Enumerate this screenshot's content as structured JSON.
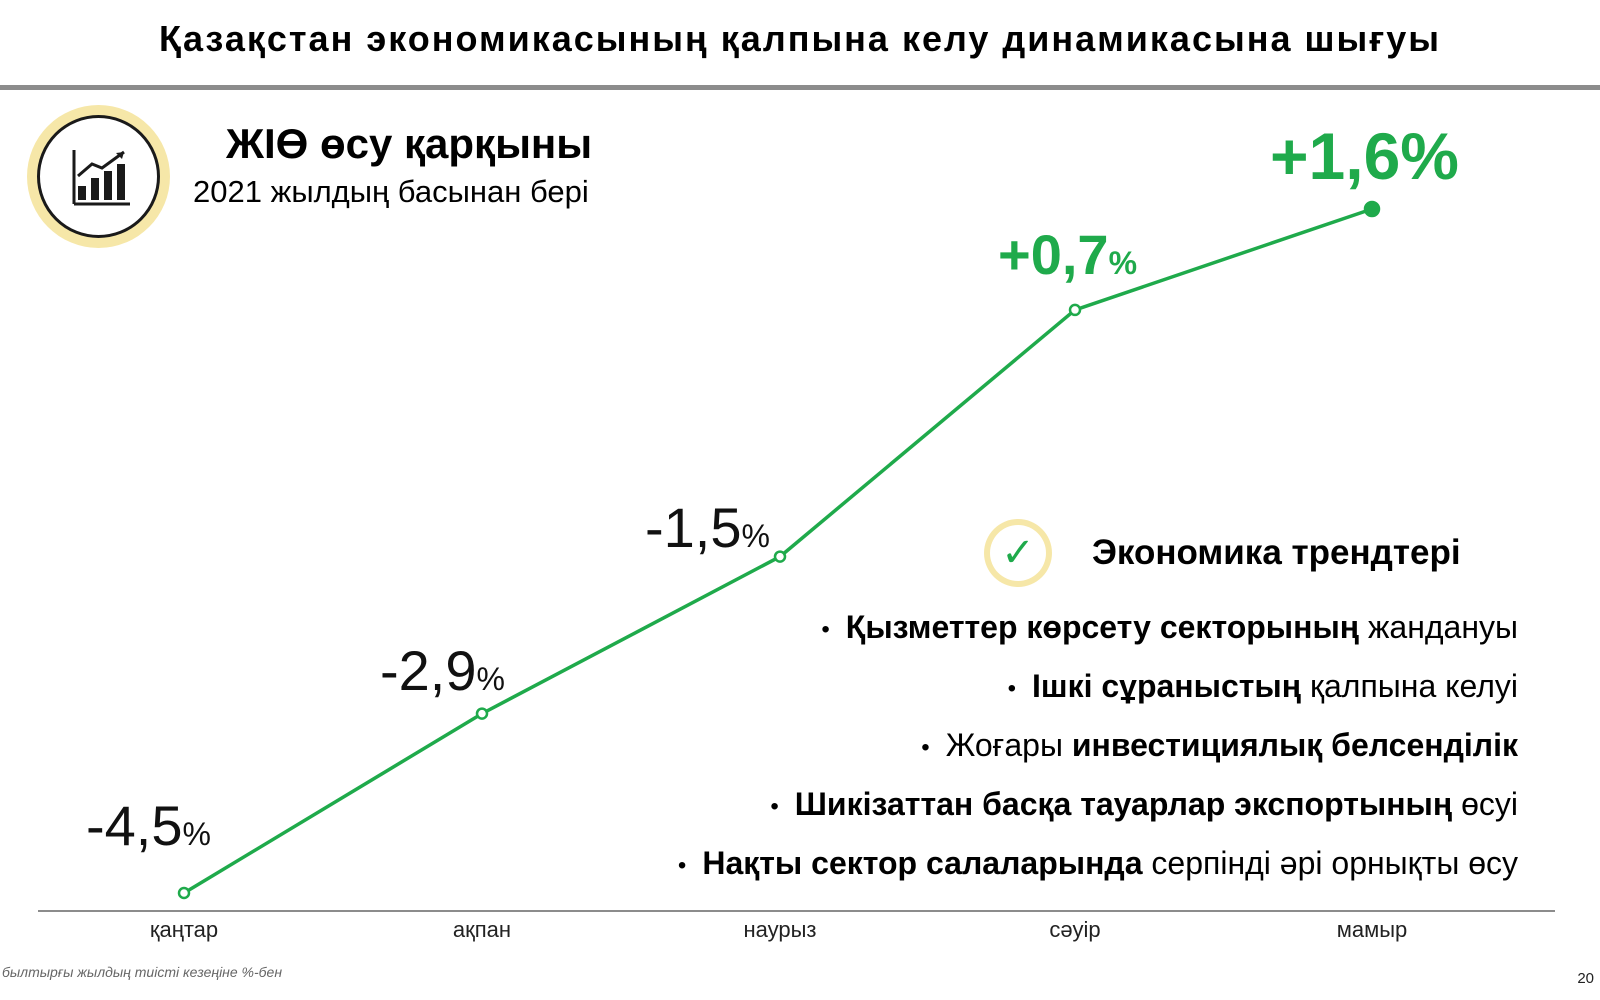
{
  "header": {
    "title": "Қазақстан экономикасының қалпына келу динамикасына шығуы"
  },
  "gdp_block": {
    "icon": "bar-chart-growth-icon",
    "title": "ЖІӨ өсу қарқыны",
    "subtitle": "2021 жылдың басынан бері"
  },
  "chart_data": {
    "type": "line",
    "categories": [
      "қаңтар",
      "ақпан",
      "наурыз",
      "сәуір",
      "мамыр"
    ],
    "values": [
      -4.5,
      -2.9,
      -1.5,
      0.7,
      1.6
    ],
    "value_labels": [
      {
        "num": "-4,5",
        "pct": "%",
        "positive": false
      },
      {
        "num": "-2,9",
        "pct": "%",
        "positive": false
      },
      {
        "num": "-1,5",
        "pct": "%",
        "positive": false
      },
      {
        "num": "+0,7",
        "pct": "%",
        "positive": true
      },
      {
        "num": "+1,6%",
        "pct": "",
        "positive": true
      }
    ],
    "line_color": "#1faa4b",
    "grid": false
  },
  "trends": {
    "icon": "checkmark-icon",
    "title": "Экономика трендтері",
    "items": [
      {
        "bold": "Қызметтер көрсету секторының",
        "rest": " жандануы"
      },
      {
        "bold": "Ішкі сұраныстың",
        "rest": " қалпына келуі"
      },
      {
        "pre": "Жоғары ",
        "bold": "инвестициялық белсенділік"
      },
      {
        "bold": "Шикізаттан басқа тауарлар экспортының",
        "rest": " өсуі"
      },
      {
        "bold": "Нақты сектор салаларында",
        "rest": " серпінді әрі орнықты өсу"
      }
    ]
  },
  "footnote": "былтырғы жылдың тиісті кезеңіне %-бен",
  "page_number": "20",
  "colors": {
    "accent_green": "#1faa4b",
    "ring_yellow": "#f6e7a8",
    "rule_gray": "#8c8c8c"
  }
}
